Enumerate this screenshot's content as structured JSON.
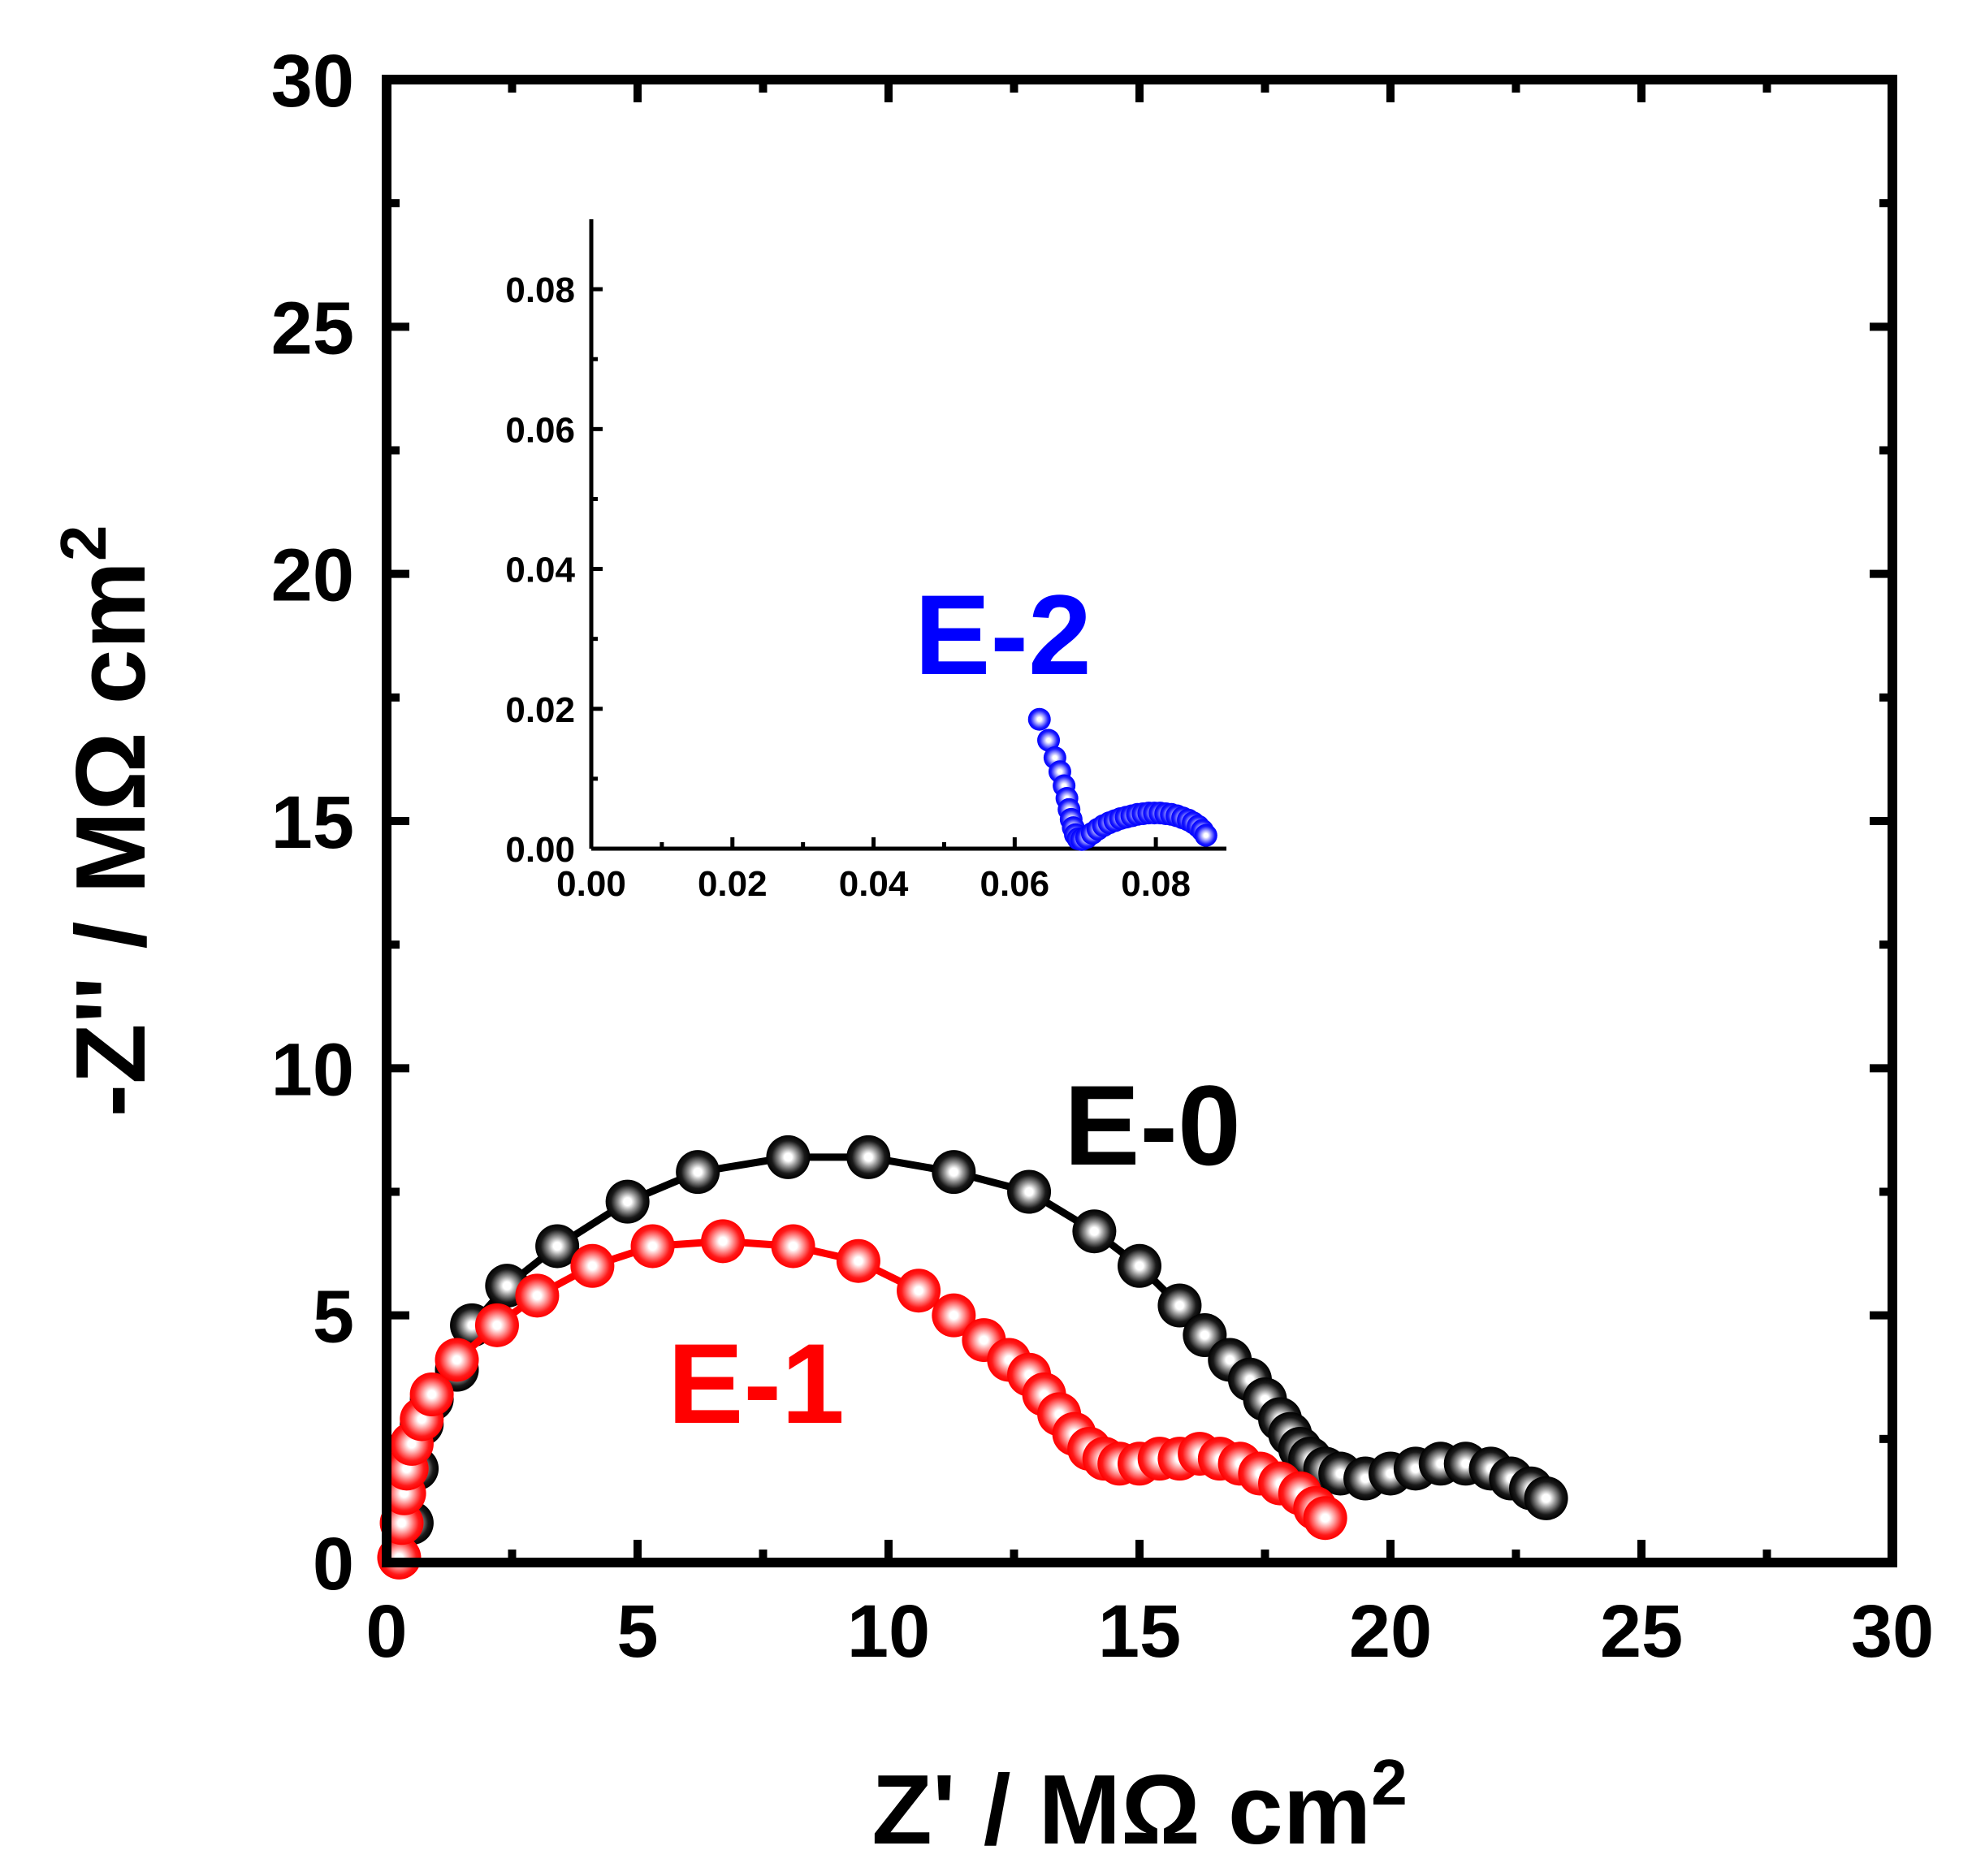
{
  "chart_data": [
    {
      "type": "scatter",
      "title": "",
      "xlabel": "Z' / MΩ cm",
      "ylabel": "-Z'' / MΩ cm",
      "unit_superscript": "2",
      "xlim": [
        0,
        30
      ],
      "ylim": [
        0,
        30
      ],
      "xticks": [
        "0",
        "5",
        "10",
        "15",
        "20",
        "25",
        "30"
      ],
      "yticks": [
        "0",
        "5",
        "10",
        "15",
        "20",
        "25",
        "30"
      ],
      "series": [
        {
          "name": "E-0",
          "color": "#000000",
          "points": [
            [
              0.5,
              0.8
            ],
            [
              0.6,
              1.9
            ],
            [
              0.7,
              2.8
            ],
            [
              0.9,
              3.3
            ],
            [
              1.4,
              3.9
            ],
            [
              1.7,
              4.8
            ],
            [
              2.4,
              5.6
            ],
            [
              3.4,
              6.4
            ],
            [
              4.8,
              7.3
            ],
            [
              6.2,
              7.9
            ],
            [
              8.0,
              8.2
            ],
            [
              9.6,
              8.2
            ],
            [
              11.3,
              7.9
            ],
            [
              12.8,
              7.5
            ],
            [
              14.1,
              6.7
            ],
            [
              15.0,
              6.0
            ],
            [
              15.8,
              5.2
            ],
            [
              16.3,
              4.6
            ],
            [
              16.8,
              4.1
            ],
            [
              17.2,
              3.7
            ],
            [
              17.5,
              3.3
            ],
            [
              17.8,
              2.9
            ],
            [
              18.0,
              2.6
            ],
            [
              18.2,
              2.3
            ],
            [
              18.4,
              2.1
            ],
            [
              18.7,
              1.9
            ],
            [
              19.0,
              1.8
            ],
            [
              19.5,
              1.7
            ],
            [
              20.0,
              1.8
            ],
            [
              20.5,
              1.9
            ],
            [
              21.0,
              2.0
            ],
            [
              21.5,
              2.0
            ],
            [
              22.0,
              1.9
            ],
            [
              22.4,
              1.7
            ],
            [
              22.8,
              1.5
            ],
            [
              23.1,
              1.3
            ]
          ]
        },
        {
          "name": "E-1",
          "color": "#ff0000",
          "points": [
            [
              0.25,
              0.1
            ],
            [
              0.3,
              0.8
            ],
            [
              0.35,
              1.4
            ],
            [
              0.4,
              1.9
            ],
            [
              0.5,
              2.4
            ],
            [
              0.7,
              2.9
            ],
            [
              0.9,
              3.4
            ],
            [
              1.4,
              4.1
            ],
            [
              2.2,
              4.8
            ],
            [
              3.0,
              5.4
            ],
            [
              4.1,
              6.0
            ],
            [
              5.3,
              6.4
            ],
            [
              6.7,
              6.5
            ],
            [
              8.1,
              6.4
            ],
            [
              9.4,
              6.1
            ],
            [
              10.6,
              5.5
            ],
            [
              11.3,
              5.0
            ],
            [
              11.9,
              4.5
            ],
            [
              12.4,
              4.1
            ],
            [
              12.8,
              3.8
            ],
            [
              13.1,
              3.4
            ],
            [
              13.4,
              3.0
            ],
            [
              13.7,
              2.6
            ],
            [
              14.0,
              2.3
            ],
            [
              14.3,
              2.1
            ],
            [
              14.6,
              2.0
            ],
            [
              15.0,
              2.0
            ],
            [
              15.4,
              2.1
            ],
            [
              15.8,
              2.1
            ],
            [
              16.2,
              2.2
            ],
            [
              16.6,
              2.1
            ],
            [
              17.0,
              2.0
            ],
            [
              17.4,
              1.8
            ],
            [
              17.8,
              1.6
            ],
            [
              18.2,
              1.4
            ],
            [
              18.5,
              1.1
            ],
            [
              18.7,
              0.9
            ]
          ]
        }
      ],
      "annotations": [
        {
          "text": "E-0",
          "color": "#000000"
        },
        {
          "text": "E-1",
          "color": "#ff0000"
        }
      ]
    },
    {
      "type": "scatter",
      "role": "inset",
      "xlim": [
        0,
        0.09
      ],
      "ylim": [
        0,
        0.09
      ],
      "xticks": [
        "0.00",
        "0.02",
        "0.04",
        "0.06",
        "0.08"
      ],
      "yticks": [
        "0.00",
        "0.02",
        "0.04",
        "0.06",
        "0.08"
      ],
      "series": [
        {
          "name": "E-2",
          "color": "#0000ff",
          "points": [
            [
              0.0635,
              0.0185
            ],
            [
              0.0648,
              0.0155
            ],
            [
              0.0657,
              0.013
            ],
            [
              0.0664,
              0.011
            ],
            [
              0.067,
              0.009
            ],
            [
              0.0674,
              0.0072
            ],
            [
              0.0677,
              0.0056
            ],
            [
              0.068,
              0.0042
            ],
            [
              0.0683,
              0.003
            ],
            [
              0.0686,
              0.002
            ],
            [
              0.069,
              0.0014
            ],
            [
              0.0695,
              0.0013
            ],
            [
              0.0702,
              0.0016
            ],
            [
              0.071,
              0.0022
            ],
            [
              0.0718,
              0.0028
            ],
            [
              0.0726,
              0.0033
            ],
            [
              0.0734,
              0.0037
            ],
            [
              0.0742,
              0.004
            ],
            [
              0.075,
              0.0043
            ],
            [
              0.0758,
              0.0045
            ],
            [
              0.0766,
              0.0047
            ],
            [
              0.0774,
              0.0049
            ],
            [
              0.0782,
              0.005
            ],
            [
              0.079,
              0.0051
            ],
            [
              0.0798,
              0.0051
            ],
            [
              0.0806,
              0.0051
            ],
            [
              0.0814,
              0.005
            ],
            [
              0.0822,
              0.0049
            ],
            [
              0.083,
              0.0047
            ],
            [
              0.0838,
              0.0044
            ],
            [
              0.0846,
              0.0041
            ],
            [
              0.0853,
              0.0037
            ],
            [
              0.086,
              0.0032
            ],
            [
              0.0866,
              0.0026
            ],
            [
              0.0871,
              0.0019
            ]
          ]
        }
      ],
      "annotations": [
        {
          "text": "E-2",
          "color": "#0000ff"
        }
      ]
    }
  ]
}
